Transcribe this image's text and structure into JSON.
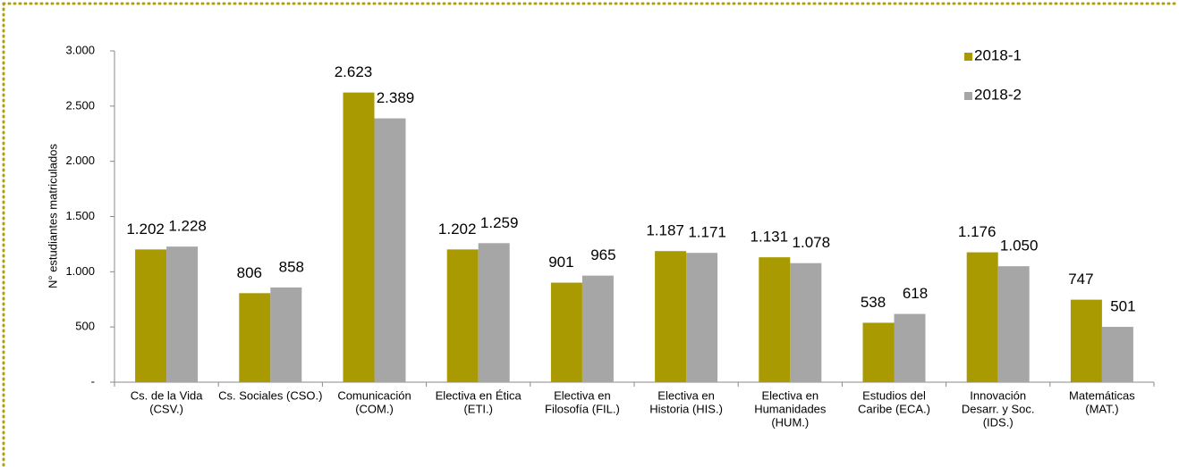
{
  "chart_data": {
    "type": "bar",
    "y_label": "N° estudiantes matriculados",
    "categories": [
      [
        "Cs. de la Vida",
        "(CSV.)"
      ],
      [
        "Cs. Sociales (CSO.)"
      ],
      [
        "Comunicación",
        "(COM.)"
      ],
      [
        "Electiva en Ética",
        "(ETI.)"
      ],
      [
        "Electiva en",
        "Filosofía (FIL.)"
      ],
      [
        "Electiva en",
        "Historia (HIS.)"
      ],
      [
        "Electiva en",
        "Humanidades",
        "(HUM.)"
      ],
      [
        "Estudios del",
        "Caribe (ECA.)"
      ],
      [
        "Innovación",
        "Desarr. y Soc.",
        "(IDS.)"
      ],
      [
        "Matemáticas",
        "(MAT.)"
      ]
    ],
    "series": [
      {
        "name": "2018-1",
        "color": "#a89a00",
        "values": [
          1202,
          806,
          2623,
          1202,
          901,
          1187,
          1131,
          538,
          1176,
          747
        ],
        "value_labels": [
          "1.202",
          "806",
          "2.623",
          "1.202",
          "901",
          "1.187",
          "1.131",
          "538",
          "1.176",
          "747"
        ]
      },
      {
        "name": "2018-2",
        "color": "#a6a6a6",
        "values": [
          1228,
          858,
          2389,
          1259,
          965,
          1171,
          1078,
          618,
          1050,
          501
        ],
        "value_labels": [
          "1.228",
          "858",
          "2.389",
          "1.259",
          "965",
          "1.171",
          "1.078",
          "618",
          "1.050",
          "501"
        ]
      }
    ],
    "ylim": [
      0,
      3000
    ],
    "yticks": [
      {
        "value": 0,
        "label": "-"
      },
      500,
      {
        "value": 1000,
        "label": "1.000"
      },
      {
        "value": 1500,
        "label": "1.500"
      },
      {
        "value": 2000,
        "label": "2.000"
      },
      {
        "value": 2500,
        "label": "2.500"
      },
      {
        "value": 3000,
        "label": "3.000"
      }
    ],
    "legend": "top-right"
  }
}
